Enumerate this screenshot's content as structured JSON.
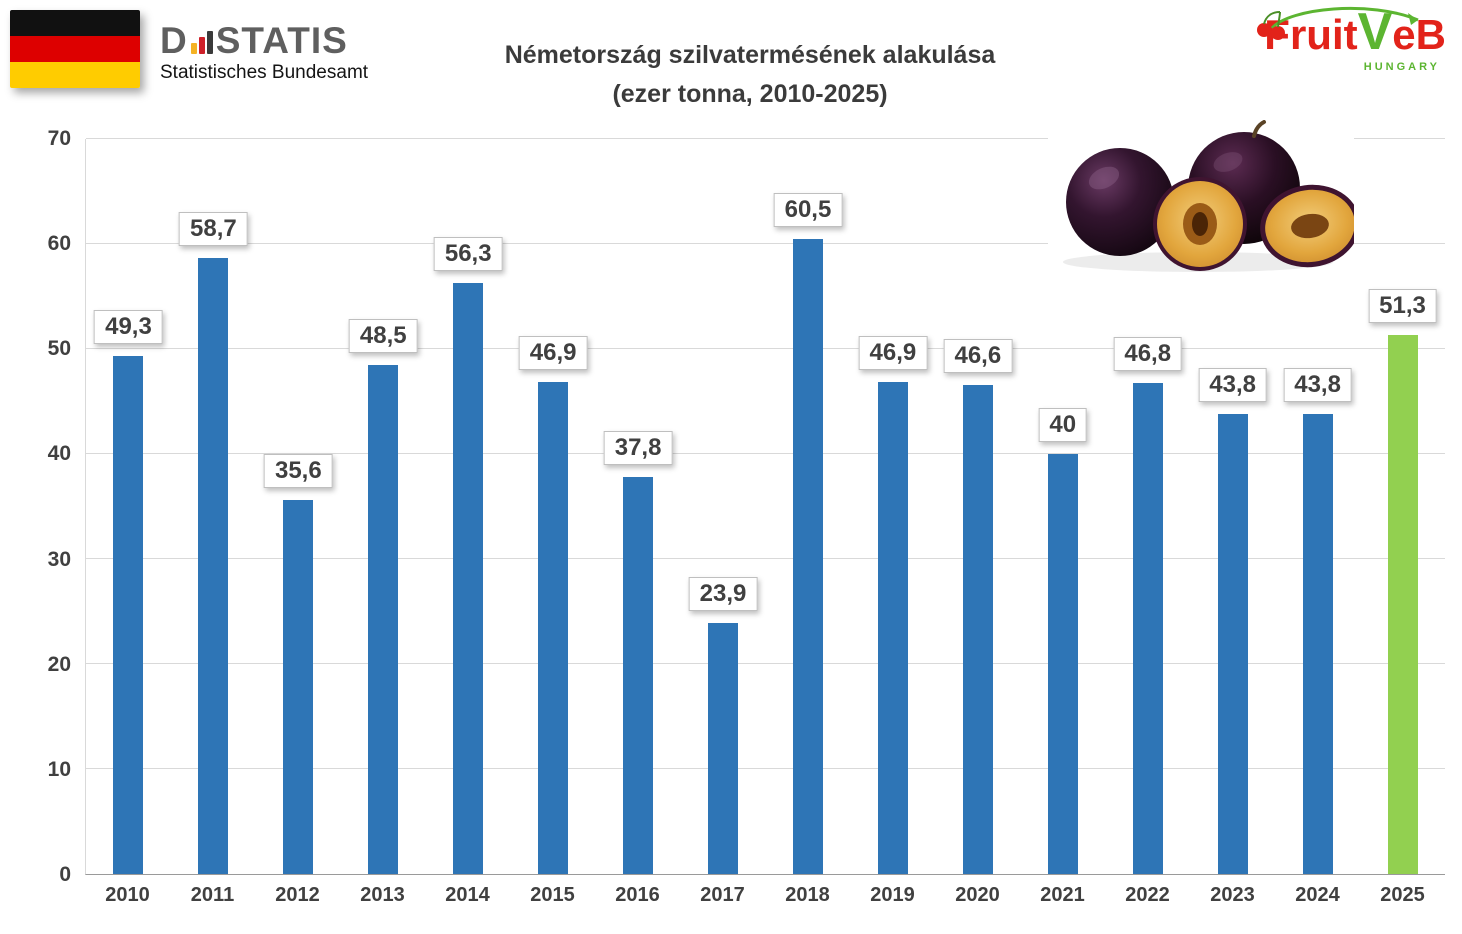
{
  "header": {
    "destatis": {
      "name_d": "D",
      "name_rest": "STATIS",
      "subtitle": "Statistisches Bundesamt"
    },
    "title_line1": "Németország szilvatermésének alakulása",
    "title_line2": "(ezer tonna, 2010-2025)",
    "fruitveb": {
      "fruit": "Fruit",
      "v": "V",
      "eb": "eB",
      "hungary": "HUNGARY"
    }
  },
  "chart_data": {
    "type": "bar",
    "title": "Németország szilvatermésének alakulása (ezer tonna, 2010-2025)",
    "categories": [
      "2010",
      "2011",
      "2012",
      "2013",
      "2014",
      "2015",
      "2016",
      "2017",
      "2018",
      "2019",
      "2020",
      "2021",
      "2022",
      "2023",
      "2024",
      "2025"
    ],
    "values": [
      49.3,
      58.7,
      35.6,
      48.5,
      56.3,
      46.9,
      37.8,
      23.9,
      60.5,
      46.9,
      46.6,
      40,
      46.8,
      43.8,
      43.8,
      51.3
    ],
    "value_labels": [
      "49,3",
      "58,7",
      "35,6",
      "48,5",
      "56,3",
      "46,9",
      "37,8",
      "23,9",
      "60,5",
      "46,9",
      "46,6",
      "40",
      "46,8",
      "43,8",
      "43,8",
      "51,3"
    ],
    "ylabel": "",
    "xlabel": "",
    "ylim": [
      0,
      70
    ],
    "yticks": [
      0,
      10,
      20,
      30,
      40,
      50,
      60,
      70
    ],
    "grid": true,
    "legend": false,
    "bar_color": "#2E75B6",
    "highlight_color": "#92D050",
    "highlight_index": 15
  }
}
